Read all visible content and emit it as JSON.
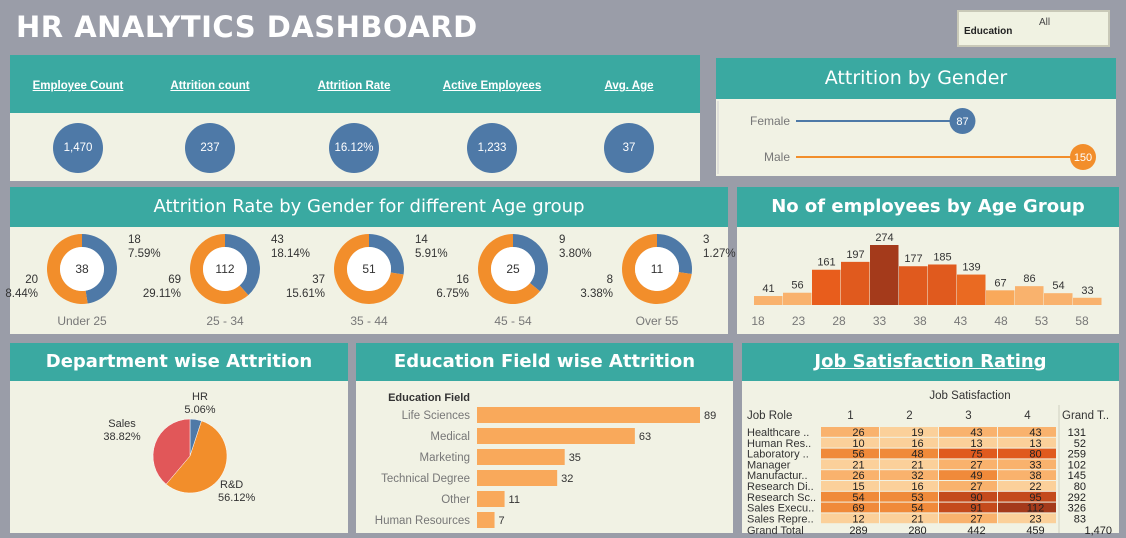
{
  "header": {
    "title": "HR ANALYTICS DASHBOARD"
  },
  "filter": {
    "label": "Education",
    "value": "All"
  },
  "kpis": [
    {
      "label": "Employee Count",
      "value": "1,470"
    },
    {
      "label": "Attrition count",
      "value": "237"
    },
    {
      "label": "Attrition Rate",
      "value": "16.12%"
    },
    {
      "label": "Active Employees",
      "value": "1,233"
    },
    {
      "label": "Avg. Age",
      "value": "37"
    }
  ],
  "titles": {
    "gender": "Attrition by Gender",
    "age_group_rate": "Attrition Rate by Gender for different Age group",
    "age_count": "No of employees by Age Group",
    "department": "Department wise Attrition",
    "education": "Education Field wise Attrition",
    "job": "Job Satisfaction Rating"
  },
  "colors": {
    "teal": "#3aa9a1",
    "blue": "#4e79a7",
    "orange": "#f28e2b",
    "panel": "#f1f2e4",
    "bar_light": "#f9a95b",
    "red": "#e15759"
  },
  "chart_data": [
    {
      "id": "gender",
      "type": "scatter",
      "categories": [
        "Female",
        "Male"
      ],
      "values": [
        87,
        150
      ],
      "title": "Attrition by Gender"
    },
    {
      "id": "age_rate",
      "type": "pie",
      "title": "Attrition Rate by Gender for different Age group",
      "groups": [
        {
          "label": "Under 25",
          "total": "38",
          "male_count": "20",
          "male_pct": "8.44%",
          "female_count": "18",
          "female_pct": "7.59%",
          "female_share": 0.474
        },
        {
          "label": "25 - 34",
          "total": "112",
          "male_count": "69",
          "male_pct": "29.11%",
          "female_count": "43",
          "female_pct": "18.14%",
          "female_share": 0.384
        },
        {
          "label": "35 - 44",
          "total": "51",
          "male_count": "37",
          "male_pct": "15.61%",
          "female_count": "14",
          "female_pct": "5.91%",
          "female_share": 0.275
        },
        {
          "label": "45 - 54",
          "total": "25",
          "male_count": "16",
          "male_pct": "6.75%",
          "female_count": "9",
          "female_pct": "3.80%",
          "female_share": 0.36
        },
        {
          "label": "Over 55",
          "total": "11",
          "male_count": "8",
          "male_pct": "3.38%",
          "female_count": "3",
          "female_pct": "1.27%",
          "female_share": 0.273
        }
      ]
    },
    {
      "id": "age_count",
      "type": "bar",
      "title": "No of employees by Age Group",
      "values": [
        41,
        56,
        161,
        197,
        274,
        177,
        185,
        139,
        67,
        86,
        54,
        33
      ],
      "colors": [
        "#f9b26d",
        "#f9b26d",
        "#e85d1c",
        "#e05a1e",
        "#a43a1b",
        "#e05a1e",
        "#e05a1e",
        "#ea6a22",
        "#f9a95b",
        "#f9b26d",
        "#f9b26d",
        "#f9b26d"
      ],
      "tick_labels": [
        "18",
        "23",
        "28",
        "33",
        "38",
        "43",
        "48",
        "53",
        "58"
      ],
      "ylim": [
        0,
        280
      ]
    },
    {
      "id": "department",
      "type": "pie",
      "title": "Department wise Attrition",
      "slices": [
        {
          "name": "HR",
          "pct": "5.06%",
          "share": 0.0506,
          "color": "#4e79a7"
        },
        {
          "name": "R&D",
          "pct": "56.12%",
          "share": 0.5612,
          "color": "#f28e2b"
        },
        {
          "name": "Sales",
          "pct": "38.82%",
          "share": 0.3882,
          "color": "#e15759"
        }
      ]
    },
    {
      "id": "education",
      "type": "bar",
      "title": "Education Field wise Attrition",
      "header": "Education Field",
      "categories": [
        "Life Sciences",
        "Medical",
        "Marketing",
        "Technical Degree",
        "Other",
        "Human Resources"
      ],
      "values": [
        89,
        63,
        35,
        32,
        11,
        7
      ]
    },
    {
      "id": "job",
      "type": "heatmap",
      "title": "Job Satisfaction Rating",
      "col_header": "Job Satisfaction",
      "row_header": "Job Role",
      "columns": [
        "1",
        "2",
        "3",
        "4"
      ],
      "total_label": "Grand T..",
      "rows": [
        {
          "role": "Healthcare ..",
          "values": [
            26,
            19,
            43,
            43
          ],
          "total": 131
        },
        {
          "role": "Human Res..",
          "values": [
            10,
            16,
            13,
            13
          ],
          "total": 52
        },
        {
          "role": "Laboratory ..",
          "values": [
            56,
            48,
            75,
            80
          ],
          "total": 259
        },
        {
          "role": "Manager",
          "values": [
            21,
            21,
            27,
            33
          ],
          "total": 102
        },
        {
          "role": "Manufactur..",
          "values": [
            26,
            32,
            49,
            38
          ],
          "total": 145
        },
        {
          "role": "Research Di..",
          "values": [
            15,
            16,
            27,
            22
          ],
          "total": 80
        },
        {
          "role": "Research Sc..",
          "values": [
            54,
            53,
            90,
            95
          ],
          "total": 292
        },
        {
          "role": "Sales Execu..",
          "values": [
            69,
            54,
            91,
            112
          ],
          "total": 326
        },
        {
          "role": "Sales Repre..",
          "values": [
            12,
            21,
            27,
            23
          ],
          "total": 83
        }
      ],
      "grand_total": {
        "label": "Grand Total",
        "values": [
          289,
          280,
          442,
          459
        ],
        "total": "1,470"
      }
    }
  ]
}
